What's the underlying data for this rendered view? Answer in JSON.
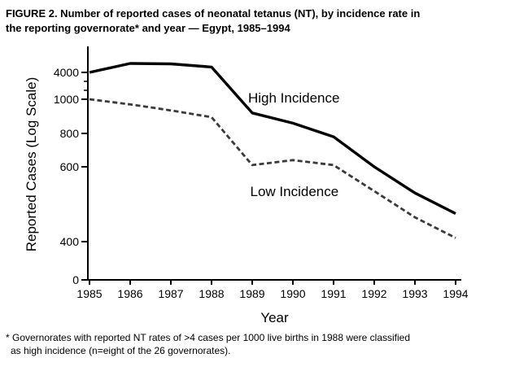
{
  "figure": {
    "title_lines": [
      "FIGURE 2. Number of reported cases of neonatal tetanus (NT), by incidence rate in",
      "the reporting governorate* and year — Egypt, 1985–1994"
    ],
    "footnote_lines": [
      "* Governorates with reported NT rates of >4 cases per 1000 live births in 1988 were classified",
      "as high incidence (n=eight of the 26 governorates)."
    ]
  },
  "chart_data": {
    "type": "line",
    "title": "FIGURE 2. Number of reported cases of neonatal tetanus (NT), by incidence rate in the reporting governorate* and year — Egypt, 1985–1994",
    "xlabel": "Year",
    "ylabel": "Reported Cases (Log Scale)",
    "x": [
      1985,
      1986,
      1987,
      1988,
      1989,
      1990,
      1991,
      1992,
      1993,
      1994
    ],
    "series": [
      {
        "name": "High Incidence",
        "style": "solid",
        "color": "#000000",
        "values": [
          4000,
          5000,
          4950,
          4600,
          920,
          860,
          780,
          600,
          530,
          475
        ]
      },
      {
        "name": "Low Incidence",
        "style": "dashed",
        "color": "#3a3a3a",
        "values": [
          1000,
          970,
          935,
          895,
          610,
          640,
          610,
          535,
          465,
          410
        ]
      }
    ],
    "y_axis": {
      "scale": "log (non-uniform as printed)",
      "major_ticks": [
        0,
        400,
        600,
        800,
        1000,
        4000
      ],
      "minor_ticks": [
        2000,
        3000
      ],
      "range": [
        0,
        5000
      ]
    },
    "grid": false,
    "legend_position": "inline-labels",
    "annotations": [
      {
        "text": "High Incidence",
        "x": 1988.9,
        "y": 980
      },
      {
        "text": "Low Incidence",
        "x": 1988.95,
        "y": 522
      }
    ]
  }
}
